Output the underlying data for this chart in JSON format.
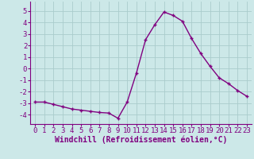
{
  "hours": [
    0,
    1,
    2,
    3,
    4,
    5,
    6,
    7,
    8,
    9,
    10,
    11,
    12,
    13,
    14,
    15,
    16,
    17,
    18,
    19,
    20,
    21,
    22,
    23
  ],
  "values": [
    -2.9,
    -2.9,
    -3.1,
    -3.3,
    -3.5,
    -3.6,
    -3.7,
    -3.8,
    -3.85,
    -4.3,
    -2.9,
    -0.4,
    2.5,
    3.8,
    4.9,
    4.6,
    4.1,
    2.6,
    1.3,
    0.2,
    -0.8,
    -1.3,
    -1.9,
    -2.4
  ],
  "line_color": "#800080",
  "marker": "+",
  "markersize": 3.5,
  "linewidth": 1.0,
  "bg_color": "#cce8e8",
  "grid_color": "#aacccc",
  "xlabel": "Windchill (Refroidissement éolien,°C)",
  "xlabel_fontsize": 7,
  "yticks": [
    -4,
    -3,
    -2,
    -1,
    0,
    1,
    2,
    3,
    4,
    5
  ],
  "ylim": [
    -4.8,
    5.8
  ],
  "xlim": [
    -0.5,
    23.5
  ],
  "tick_fontsize": 6.5,
  "spine_color": "#800080",
  "label_color": "#800080"
}
